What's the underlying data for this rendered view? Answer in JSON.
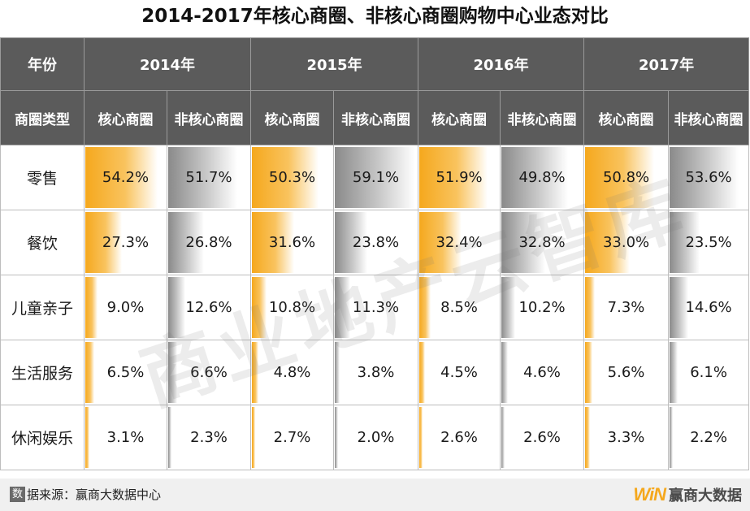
{
  "title": "2014-2017年核心商圈、非核心商圈购物中心业态对比",
  "header": {
    "year_label": "年份",
    "type_label": "商圈类型",
    "core_label": "核心商圈",
    "noncore_label": "非核心商圈"
  },
  "chart_data": {
    "type": "table",
    "title": "2014-2017年核心商圈、非核心商圈购物中心业态对比",
    "years": [
      "2014年",
      "2015年",
      "2016年",
      "2017年"
    ],
    "types": [
      "核心商圈",
      "非核心商圈"
    ],
    "rows": [
      {
        "label": "零售",
        "values": [
          "54.2%",
          "51.7%",
          "50.3%",
          "59.1%",
          "51.9%",
          "49.8%",
          "50.8%",
          "53.6%"
        ],
        "nums": [
          54.2,
          51.7,
          50.3,
          59.1,
          51.9,
          49.8,
          50.8,
          53.6
        ]
      },
      {
        "label": "餐饮",
        "values": [
          "27.3%",
          "26.8%",
          "31.6%",
          "23.8%",
          "32.4%",
          "32.8%",
          "33.0%",
          "23.5%"
        ],
        "nums": [
          27.3,
          26.8,
          31.6,
          23.8,
          32.4,
          32.8,
          33.0,
          23.5
        ]
      },
      {
        "label": "儿童亲子",
        "values": [
          "9.0%",
          "12.6%",
          "10.8%",
          "11.3%",
          "8.5%",
          "10.2%",
          "7.3%",
          "14.6%"
        ],
        "nums": [
          9.0,
          12.6,
          10.8,
          11.3,
          8.5,
          10.2,
          7.3,
          14.6
        ]
      },
      {
        "label": "生活服务",
        "values": [
          "6.5%",
          "6.6%",
          "4.8%",
          "3.8%",
          "4.5%",
          "4.6%",
          "5.6%",
          "6.1%"
        ],
        "nums": [
          6.5,
          6.6,
          4.8,
          3.8,
          4.5,
          4.6,
          5.6,
          6.1
        ]
      },
      {
        "label": "休闲娱乐",
        "values": [
          "3.1%",
          "2.3%",
          "2.7%",
          "2.0%",
          "2.6%",
          "2.6%",
          "3.3%",
          "2.2%"
        ],
        "nums": [
          3.1,
          2.3,
          2.7,
          2.0,
          2.6,
          2.6,
          3.3,
          2.2
        ]
      }
    ],
    "bar_max": 60
  },
  "colors": {
    "header_bg": "#5b5b5b",
    "core_bar": "#f5a81d",
    "noncore_bar": "#9a9a9a"
  },
  "watermark": "商业地产云智库",
  "footer": {
    "source_badge": "数",
    "source_text": "据来源：赢商大数据中心",
    "logo_mark_a": "W",
    "logo_mark_b": "i",
    "logo_mark_c": "N",
    "logo_name": "赢商大数据"
  }
}
